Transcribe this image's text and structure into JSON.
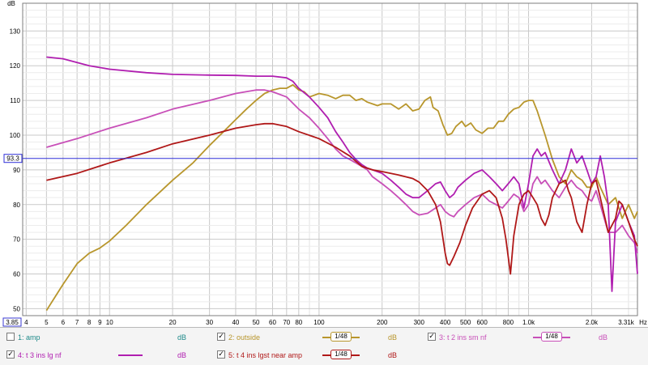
{
  "chart_data": {
    "type": "line",
    "x_scale": "log",
    "y_unit": "dB",
    "x_unit": "Hz",
    "xlim": [
      3.85,
      3310
    ],
    "ylim": [
      48,
      138
    ],
    "x_min_label": "3.85",
    "x_max_label": "3.31k",
    "cursor_label": "93.3",
    "cursor_y": 93.3,
    "grid": true,
    "y_ticks": [
      50,
      60,
      70,
      80,
      90,
      100,
      110,
      120,
      130
    ],
    "x_ticks": [
      {
        "v": 4,
        "label": "4"
      },
      {
        "v": 5,
        "label": "5"
      },
      {
        "v": 6,
        "label": "6"
      },
      {
        "v": 7,
        "label": "7"
      },
      {
        "v": 8,
        "label": "8"
      },
      {
        "v": 9,
        "label": "9"
      },
      {
        "v": 10,
        "label": "10"
      },
      {
        "v": 20,
        "label": "20"
      },
      {
        "v": 30,
        "label": "30"
      },
      {
        "v": 40,
        "label": "40"
      },
      {
        "v": 50,
        "label": "50"
      },
      {
        "v": 60,
        "label": "60"
      },
      {
        "v": 70,
        "label": "70"
      },
      {
        "v": 80,
        "label": "80"
      },
      {
        "v": 100,
        "label": "100"
      },
      {
        "v": 200,
        "label": "200"
      },
      {
        "v": 300,
        "label": "300"
      },
      {
        "v": 400,
        "label": "400"
      },
      {
        "v": 500,
        "label": "500"
      },
      {
        "v": 600,
        "label": "600"
      },
      {
        "v": 800,
        "label": "800"
      },
      {
        "v": 1000,
        "label": "1.0k"
      },
      {
        "v": 2000,
        "label": "2.0k"
      }
    ],
    "series": [
      {
        "name": "outside",
        "color": "#b8962c",
        "points": [
          [
            5,
            49.5
          ],
          [
            6,
            57
          ],
          [
            7,
            63
          ],
          [
            8,
            66
          ],
          [
            9,
            67.5
          ],
          [
            10,
            69.5
          ],
          [
            12,
            74
          ],
          [
            15,
            80
          ],
          [
            20,
            87
          ],
          [
            25,
            92
          ],
          [
            30,
            97
          ],
          [
            35,
            101
          ],
          [
            40,
            104.5
          ],
          [
            45,
            107.5
          ],
          [
            50,
            110
          ],
          [
            55,
            112
          ],
          [
            60,
            113
          ],
          [
            65,
            113.5
          ],
          [
            70,
            113.5
          ],
          [
            75,
            114.5
          ],
          [
            80,
            113
          ],
          [
            85,
            112.5
          ],
          [
            90,
            111
          ],
          [
            100,
            112
          ],
          [
            110,
            111.5
          ],
          [
            120,
            110.5
          ],
          [
            130,
            111.5
          ],
          [
            140,
            111.5
          ],
          [
            150,
            110
          ],
          [
            160,
            110.5
          ],
          [
            170,
            109.5
          ],
          [
            180,
            109
          ],
          [
            190,
            108.5
          ],
          [
            200,
            109
          ],
          [
            220,
            109
          ],
          [
            240,
            107.5
          ],
          [
            260,
            109
          ],
          [
            280,
            107
          ],
          [
            300,
            107.5
          ],
          [
            320,
            110
          ],
          [
            340,
            111
          ],
          [
            350,
            108
          ],
          [
            370,
            107
          ],
          [
            390,
            103
          ],
          [
            410,
            100
          ],
          [
            430,
            100.5
          ],
          [
            450,
            102.5
          ],
          [
            480,
            104
          ],
          [
            500,
            102.5
          ],
          [
            530,
            103.5
          ],
          [
            560,
            101.5
          ],
          [
            600,
            100.5
          ],
          [
            640,
            102
          ],
          [
            680,
            102
          ],
          [
            720,
            104
          ],
          [
            760,
            104
          ],
          [
            800,
            106
          ],
          [
            850,
            107.5
          ],
          [
            900,
            108
          ],
          [
            950,
            109.5
          ],
          [
            1000,
            110
          ],
          [
            1050,
            110
          ],
          [
            1100,
            107
          ],
          [
            1200,
            100
          ],
          [
            1300,
            93
          ],
          [
            1400,
            88
          ],
          [
            1500,
            86
          ],
          [
            1600,
            90
          ],
          [
            1700,
            88
          ],
          [
            1800,
            87
          ],
          [
            1900,
            85
          ],
          [
            2000,
            85
          ],
          [
            2100,
            88
          ],
          [
            2200,
            85
          ],
          [
            2400,
            80
          ],
          [
            2600,
            82
          ],
          [
            2800,
            76
          ],
          [
            3000,
            80
          ],
          [
            3200,
            76
          ],
          [
            3310,
            78
          ]
        ]
      },
      {
        "name": "t 2 ins sm nf",
        "color": "#c84fb8",
        "points": [
          [
            5,
            96.5
          ],
          [
            7,
            99
          ],
          [
            10,
            102
          ],
          [
            15,
            105
          ],
          [
            20,
            107.5
          ],
          [
            30,
            110
          ],
          [
            40,
            112
          ],
          [
            50,
            113
          ],
          [
            55,
            113
          ],
          [
            60,
            112.5
          ],
          [
            70,
            111
          ],
          [
            80,
            107.5
          ],
          [
            90,
            105
          ],
          [
            100,
            102
          ],
          [
            110,
            99
          ],
          [
            120,
            96
          ],
          [
            130,
            94
          ],
          [
            140,
            93
          ],
          [
            150,
            92
          ],
          [
            160,
            91
          ],
          [
            170,
            90
          ],
          [
            180,
            88
          ],
          [
            200,
            86
          ],
          [
            220,
            84
          ],
          [
            240,
            82
          ],
          [
            260,
            80
          ],
          [
            280,
            78
          ],
          [
            300,
            77
          ],
          [
            330,
            77.5
          ],
          [
            360,
            79
          ],
          [
            380,
            80
          ],
          [
            400,
            78
          ],
          [
            420,
            77
          ],
          [
            440,
            76.5
          ],
          [
            460,
            78
          ],
          [
            500,
            80
          ],
          [
            550,
            82
          ],
          [
            600,
            83
          ],
          [
            650,
            81
          ],
          [
            700,
            80
          ],
          [
            750,
            79
          ],
          [
            800,
            81
          ],
          [
            850,
            83
          ],
          [
            900,
            82
          ],
          [
            950,
            78
          ],
          [
            1000,
            80
          ],
          [
            1050,
            86
          ],
          [
            1100,
            88
          ],
          [
            1150,
            86
          ],
          [
            1200,
            87
          ],
          [
            1300,
            84
          ],
          [
            1400,
            82
          ],
          [
            1500,
            85
          ],
          [
            1600,
            87
          ],
          [
            1700,
            85
          ],
          [
            1800,
            84
          ],
          [
            1900,
            82
          ],
          [
            2000,
            81
          ],
          [
            2100,
            84
          ],
          [
            2200,
            80
          ],
          [
            2400,
            72
          ],
          [
            2600,
            72
          ],
          [
            2800,
            74
          ],
          [
            3000,
            71
          ],
          [
            3200,
            69
          ],
          [
            3310,
            66
          ]
        ]
      },
      {
        "name": "t 3 ins lg nf",
        "color": "#b01eb0",
        "points": [
          [
            5,
            122.5
          ],
          [
            6,
            122
          ],
          [
            8,
            120
          ],
          [
            10,
            119
          ],
          [
            15,
            118
          ],
          [
            20,
            117.5
          ],
          [
            30,
            117.3
          ],
          [
            40,
            117.2
          ],
          [
            50,
            117
          ],
          [
            60,
            117
          ],
          [
            70,
            116.5
          ],
          [
            75,
            115.5
          ],
          [
            80,
            113.5
          ],
          [
            90,
            111
          ],
          [
            100,
            108
          ],
          [
            110,
            105
          ],
          [
            120,
            101
          ],
          [
            130,
            98
          ],
          [
            140,
            95
          ],
          [
            150,
            93
          ],
          [
            160,
            91.5
          ],
          [
            170,
            90.5
          ],
          [
            180,
            90
          ],
          [
            200,
            89
          ],
          [
            220,
            87
          ],
          [
            240,
            85
          ],
          [
            260,
            83
          ],
          [
            280,
            82
          ],
          [
            300,
            82
          ],
          [
            330,
            84
          ],
          [
            360,
            86
          ],
          [
            380,
            86.5
          ],
          [
            400,
            84
          ],
          [
            420,
            82
          ],
          [
            440,
            83
          ],
          [
            460,
            85
          ],
          [
            500,
            87
          ],
          [
            550,
            89
          ],
          [
            600,
            90
          ],
          [
            650,
            88
          ],
          [
            700,
            86
          ],
          [
            750,
            84
          ],
          [
            800,
            86
          ],
          [
            850,
            88
          ],
          [
            900,
            86
          ],
          [
            950,
            79
          ],
          [
            1000,
            86
          ],
          [
            1050,
            94
          ],
          [
            1100,
            96
          ],
          [
            1150,
            94
          ],
          [
            1200,
            95
          ],
          [
            1300,
            90
          ],
          [
            1400,
            86
          ],
          [
            1500,
            90
          ],
          [
            1600,
            96
          ],
          [
            1700,
            92
          ],
          [
            1800,
            94
          ],
          [
            1900,
            90
          ],
          [
            2000,
            86
          ],
          [
            2100,
            88
          ],
          [
            2200,
            94
          ],
          [
            2300,
            88
          ],
          [
            2400,
            80
          ],
          [
            2500,
            55
          ],
          [
            2600,
            75
          ],
          [
            2800,
            80
          ],
          [
            3000,
            75
          ],
          [
            3200,
            71
          ],
          [
            3310,
            60
          ]
        ]
      },
      {
        "name": "t 4 ins lgst near amp",
        "color": "#b01818",
        "points": [
          [
            5,
            87
          ],
          [
            7,
            89
          ],
          [
            10,
            92
          ],
          [
            15,
            95
          ],
          [
            20,
            97.5
          ],
          [
            30,
            100
          ],
          [
            40,
            102
          ],
          [
            50,
            103
          ],
          [
            55,
            103.3
          ],
          [
            60,
            103.3
          ],
          [
            70,
            102.5
          ],
          [
            80,
            101
          ],
          [
            100,
            99
          ],
          [
            120,
            96.5
          ],
          [
            140,
            94
          ],
          [
            160,
            91
          ],
          [
            180,
            90
          ],
          [
            200,
            89.5
          ],
          [
            240,
            88.5
          ],
          [
            280,
            87.5
          ],
          [
            300,
            86.5
          ],
          [
            330,
            84
          ],
          [
            360,
            80
          ],
          [
            380,
            75
          ],
          [
            400,
            66
          ],
          [
            410,
            63
          ],
          [
            420,
            62.5
          ],
          [
            440,
            65
          ],
          [
            470,
            69
          ],
          [
            500,
            74
          ],
          [
            540,
            79
          ],
          [
            600,
            83
          ],
          [
            650,
            84
          ],
          [
            700,
            82
          ],
          [
            750,
            76
          ],
          [
            780,
            70
          ],
          [
            820,
            60
          ],
          [
            850,
            71
          ],
          [
            900,
            80
          ],
          [
            950,
            83
          ],
          [
            1000,
            84
          ],
          [
            1050,
            82
          ],
          [
            1100,
            80
          ],
          [
            1150,
            76
          ],
          [
            1200,
            74
          ],
          [
            1250,
            77
          ],
          [
            1300,
            82
          ],
          [
            1400,
            86
          ],
          [
            1500,
            87
          ],
          [
            1550,
            84
          ],
          [
            1600,
            82
          ],
          [
            1700,
            75
          ],
          [
            1800,
            72
          ],
          [
            1900,
            80
          ],
          [
            2000,
            86
          ],
          [
            2100,
            87
          ],
          [
            2200,
            82
          ],
          [
            2400,
            72
          ],
          [
            2600,
            76
          ],
          [
            2700,
            81
          ],
          [
            2800,
            80
          ],
          [
            3000,
            75
          ],
          [
            3200,
            70
          ],
          [
            3310,
            68
          ]
        ]
      }
    ]
  },
  "legend": {
    "items": [
      {
        "checked": false,
        "label": "1: amp",
        "unit": "dB",
        "color": "#1f8a8a",
        "smoothing": ""
      },
      {
        "checked": true,
        "label": "2: outside",
        "unit": "dB",
        "color": "#b8962c",
        "smoothing": "1/48"
      },
      {
        "checked": true,
        "label": "3: t 2 ins sm nf",
        "unit": "dB",
        "color": "#c84fb8",
        "smoothing": "1/48"
      },
      {
        "checked": true,
        "label": "4: t 3 ins lg nf",
        "unit": "dB",
        "color": "#b01eb0",
        "smoothing": ""
      },
      {
        "checked": true,
        "label": "5: t 4 ins lgst near amp",
        "unit": "dB",
        "color": "#b01818",
        "smoothing": "1/48"
      }
    ],
    "check_glyph": "✓"
  }
}
